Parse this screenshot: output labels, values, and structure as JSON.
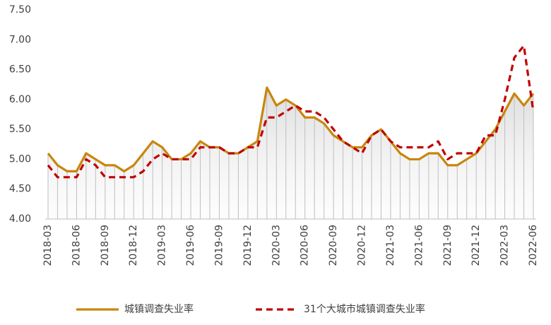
{
  "chart_data": {
    "type": "line",
    "categories": [
      "2018-03",
      null,
      null,
      "2018-06",
      null,
      null,
      "2018-09",
      null,
      null,
      "2018-12",
      null,
      null,
      "2019-03",
      null,
      null,
      "2019-06",
      null,
      null,
      "2019-09",
      null,
      null,
      "2019-12",
      null,
      null,
      "2020-03",
      null,
      null,
      "2020-06",
      null,
      null,
      "2020-09",
      null,
      null,
      "2020-12",
      null,
      null,
      "2021-03",
      null,
      null,
      "2021-06",
      null,
      null,
      "2021-09",
      null,
      null,
      "2021-12",
      null,
      null,
      "2022-03",
      null,
      null,
      "2022-06"
    ],
    "series": [
      {
        "name": "城镇调查失业率",
        "color": "#c8860d",
        "dash": false,
        "values": [
          5.1,
          4.9,
          4.8,
          4.8,
          5.1,
          5.0,
          4.9,
          4.9,
          4.8,
          4.9,
          5.1,
          5.3,
          5.2,
          5.0,
          5.0,
          5.1,
          5.3,
          5.2,
          5.2,
          5.1,
          5.1,
          5.2,
          5.3,
          6.2,
          5.9,
          6.0,
          5.9,
          5.7,
          5.7,
          5.6,
          5.4,
          5.3,
          5.2,
          5.2,
          5.4,
          5.5,
          5.3,
          5.1,
          5.0,
          5.0,
          5.1,
          5.1,
          4.9,
          4.9,
          5.0,
          5.1,
          5.3,
          5.5,
          5.8,
          6.1,
          5.9,
          6.1
        ]
      },
      {
        "name": "31个大城市城镇调查失业率",
        "color": "#c00000",
        "dash": true,
        "values": [
          4.9,
          4.7,
          4.7,
          4.7,
          5.0,
          4.9,
          4.7,
          4.7,
          4.7,
          4.7,
          4.8,
          5.0,
          5.1,
          5.0,
          5.0,
          5.0,
          5.2,
          5.2,
          5.2,
          5.1,
          5.1,
          5.2,
          5.2,
          5.7,
          5.7,
          5.8,
          5.9,
          5.8,
          5.8,
          5.7,
          5.5,
          5.3,
          5.2,
          5.1,
          5.4,
          5.5,
          5.3,
          5.2,
          5.2,
          5.2,
          5.2,
          5.3,
          5.0,
          5.1,
          5.1,
          5.1,
          5.4,
          5.4,
          6.0,
          6.7,
          6.9,
          5.8
        ]
      }
    ],
    "ylim": [
      4,
      7.5
    ],
    "yticks": [
      {
        "value": 4,
        "label": "4.00"
      },
      {
        "value": 4.5,
        "label": "4.50"
      },
      {
        "value": 5,
        "label": "5.00"
      },
      {
        "value": 5.5,
        "label": "5.50"
      },
      {
        "value": 6,
        "label": "6.00"
      },
      {
        "value": 6.5,
        "label": "6.50"
      },
      {
        "value": 7,
        "label": "7.00"
      },
      {
        "value": 7.5,
        "label": "7.50"
      }
    ],
    "grid": false,
    "legend": "bottom"
  }
}
